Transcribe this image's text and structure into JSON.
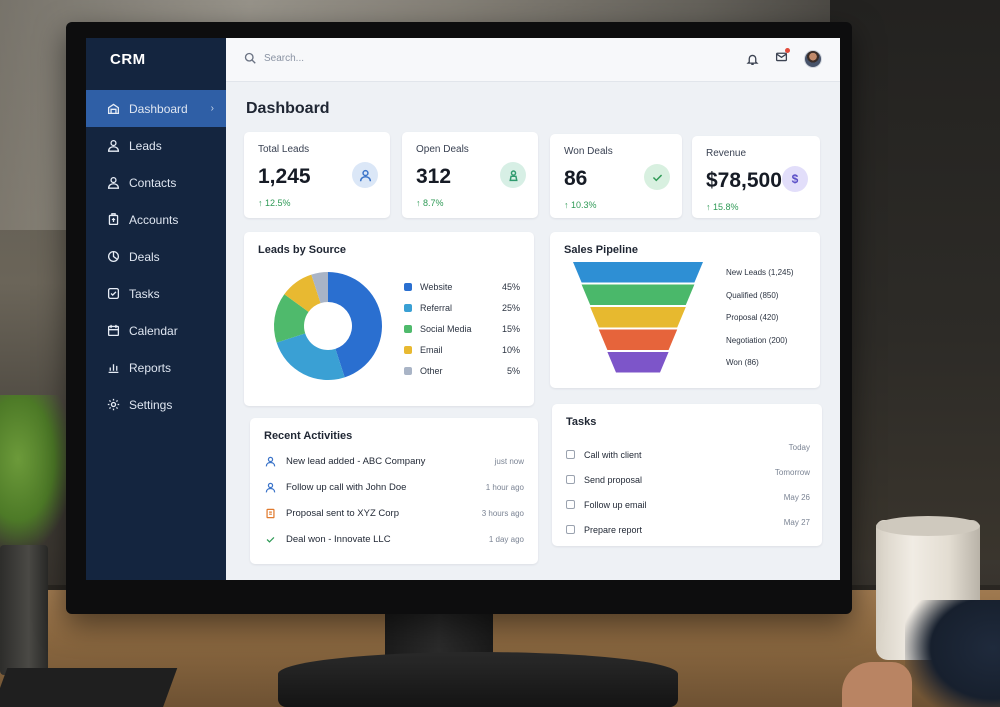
{
  "app": {
    "brand": "CRM"
  },
  "sidebar": {
    "items": [
      {
        "label": "Dashboard",
        "icon": "dashboard-icon",
        "active": true
      },
      {
        "label": "Leads",
        "icon": "user-icon"
      },
      {
        "label": "Contacts",
        "icon": "contact-icon"
      },
      {
        "label": "Accounts",
        "icon": "building-icon"
      },
      {
        "label": "Deals",
        "icon": "tag-icon"
      },
      {
        "label": "Tasks",
        "icon": "checkbox-icon"
      },
      {
        "label": "Calendar",
        "icon": "calendar-icon"
      },
      {
        "label": "Reports",
        "icon": "bar-chart-icon"
      },
      {
        "label": "Settings",
        "icon": "gear-icon"
      }
    ],
    "chevron": "›"
  },
  "topbar": {
    "search_placeholder": "Search...",
    "icons": [
      "bell-icon",
      "mail-icon",
      "avatar"
    ]
  },
  "page": {
    "title": "Dashboard"
  },
  "kpis": [
    {
      "label": "Total Leads",
      "value": "1,245",
      "delta": "12.5%",
      "icon": "user-icon",
      "color": "#3b74c9",
      "bg": "#dbe7f7"
    },
    {
      "label": "Open Deals",
      "value": "312",
      "delta": "8.7%",
      "icon": "person-icon",
      "color": "#2f9a6e",
      "bg": "#d7efe5"
    },
    {
      "label": "Won Deals",
      "value": "86",
      "delta": "10.3%",
      "icon": "check-icon",
      "color": "#2f9a56",
      "bg": "#d8f0e0"
    },
    {
      "label": "Revenue",
      "value": "$78,500",
      "delta": "15.8%",
      "icon": "dollar-icon",
      "color": "#5b4fc7",
      "bg": "#e2defa"
    }
  ],
  "leads_by_source": {
    "title": "Leads by Source",
    "chart_data": {
      "type": "pie",
      "categories": [
        "Website",
        "Referral",
        "Social Media",
        "Email",
        "Other"
      ],
      "values": [
        45,
        25,
        15,
        10,
        5
      ],
      "labels": [
        "45%",
        "25%",
        "15%",
        "10%",
        "5%"
      ],
      "colors": [
        "#2a6fd0",
        "#3aa0d4",
        "#4fba6c",
        "#e8b931",
        "#a9b4c6"
      ]
    }
  },
  "sales_pipeline": {
    "title": "Sales Pipeline",
    "stages": [
      {
        "label": "New Leads (1,245)",
        "value": 1245,
        "color": "#2e8fd4"
      },
      {
        "label": "Qualified (850)",
        "value": 850,
        "color": "#4ab86a"
      },
      {
        "label": "Proposal (420)",
        "value": 420,
        "color": "#e7b92f"
      },
      {
        "label": "Negotiation (200)",
        "value": 200,
        "color": "#e6643b"
      },
      {
        "label": "Won (86)",
        "value": 86,
        "color": "#7d55c9"
      }
    ]
  },
  "recent_activities": {
    "title": "Recent Activities",
    "items": [
      {
        "text": "New lead added - ABC Company",
        "time": "just now",
        "icon": "user-icon",
        "color": "#3b74c9"
      },
      {
        "text": "Follow up call with John Doe",
        "time": "1 hour ago",
        "icon": "user-icon",
        "color": "#3b74c9"
      },
      {
        "text": "Proposal sent to XYZ Corp",
        "time": "3 hours ago",
        "icon": "document-icon",
        "color": "#e07a2e"
      },
      {
        "text": "Deal won - Innovate LLC",
        "time": "1 day ago",
        "icon": "check-icon",
        "color": "#2f9a56"
      }
    ]
  },
  "tasks": {
    "title": "Tasks",
    "items": [
      {
        "name": "Call with client",
        "date": "Today"
      },
      {
        "name": "Send proposal",
        "date": "Tomorrow"
      },
      {
        "name": "Follow up email",
        "date": "May 26"
      },
      {
        "name": "Prepare report",
        "date": "May 27"
      }
    ]
  }
}
